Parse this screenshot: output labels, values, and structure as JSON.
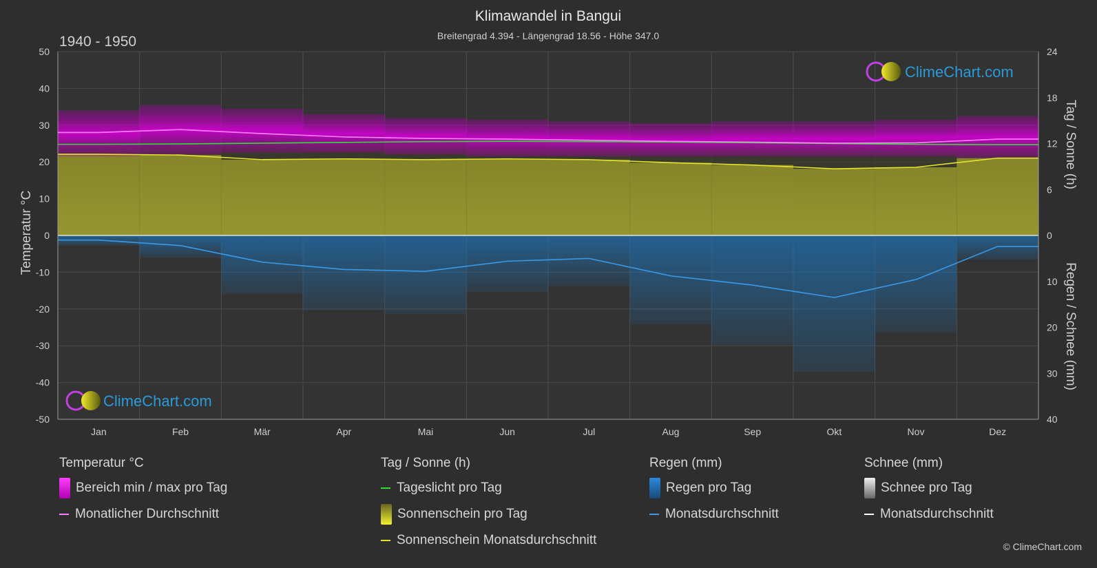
{
  "title": "Klimawandel in Bangui",
  "subtitle": "Breitengrad 4.394 - Längengrad 18.56 - Höhe 347.0",
  "period": "1940 - 1950",
  "brand": "ClimeChart.com",
  "copyright": "© ClimeChart.com",
  "colors": {
    "background": "#2e2e2e",
    "temp_range": "#d400d4",
    "temp_avg": "#ff80ff",
    "daylight": "#33dd33",
    "sunshine_fill": "#b5b53a",
    "sunshine_avg": "#e6e62e",
    "rain_bar": "#1e6fb0",
    "rain_avg": "#3a9ae8",
    "brand_text": "#2a9bd8"
  },
  "chart_data": {
    "type": "line",
    "categories": [
      "Jan",
      "Feb",
      "Mär",
      "Apr",
      "Mai",
      "Jun",
      "Jul",
      "Aug",
      "Sep",
      "Okt",
      "Nov",
      "Dez"
    ],
    "y_left": {
      "label": "Temperatur °C",
      "range": [
        -50,
        50
      ],
      "ticks": [
        50,
        40,
        30,
        20,
        10,
        0,
        -10,
        -20,
        -30,
        -40,
        -50
      ]
    },
    "y_right_top": {
      "label": "Tag / Sonne (h)",
      "range": [
        0,
        24
      ],
      "ticks": [
        24,
        18,
        12,
        6,
        0
      ]
    },
    "y_right_bottom": {
      "label": "Regen / Schnee (mm)",
      "range": [
        0,
        40
      ],
      "ticks": [
        0,
        10,
        20,
        30,
        40
      ]
    },
    "series": [
      {
        "name": "Bereich min / max pro Tag",
        "unit": "°C",
        "min": [
          21.5,
          22.0,
          22.5,
          22.5,
          22.0,
          21.5,
          21.5,
          21.5,
          21.5,
          21.5,
          21.5,
          21.0
        ],
        "max": [
          34.0,
          35.5,
          34.5,
          33.0,
          32.0,
          31.5,
          31.0,
          30.5,
          31.0,
          31.0,
          31.5,
          32.5
        ]
      },
      {
        "name": "Monatlicher Durchschnitt",
        "unit": "°C",
        "values": [
          28.0,
          28.8,
          27.7,
          26.8,
          26.4,
          26.2,
          25.9,
          25.6,
          25.4,
          25.1,
          25.2,
          26.2
        ]
      },
      {
        "name": "Tageslicht pro Tag",
        "unit": "h",
        "values": [
          11.9,
          11.95,
          12.05,
          12.15,
          12.25,
          12.3,
          12.25,
          12.2,
          12.1,
          12.0,
          11.9,
          11.85
        ]
      },
      {
        "name": "Sonnenschein Monatsdurchschnitt",
        "unit": "h",
        "values": [
          10.6,
          10.5,
          9.9,
          10.0,
          9.9,
          10.0,
          9.9,
          9.5,
          9.2,
          8.7,
          8.9,
          10.1
        ]
      },
      {
        "name": "Monatsdurchschnitt",
        "unit": "mm",
        "values": [
          1.0,
          2.2,
          5.8,
          7.4,
          7.8,
          5.6,
          5.0,
          8.8,
          10.8,
          13.5,
          9.6,
          2.4
        ]
      }
    ],
    "grid": true
  },
  "legend": {
    "temperature": {
      "header": "Temperatur °C",
      "items": [
        "Bereich min / max pro Tag",
        "Monatlicher Durchschnitt"
      ]
    },
    "sun": {
      "header": "Tag / Sonne (h)",
      "items": [
        "Tageslicht pro Tag",
        "Sonnenschein pro Tag",
        "Sonnenschein Monatsdurchschnitt"
      ]
    },
    "rain": {
      "header": "Regen (mm)",
      "items": [
        "Regen pro Tag",
        "Monatsdurchschnitt"
      ]
    },
    "snow": {
      "header": "Schnee (mm)",
      "items": [
        "Schnee pro Tag",
        "Monatsdurchschnitt"
      ]
    }
  }
}
